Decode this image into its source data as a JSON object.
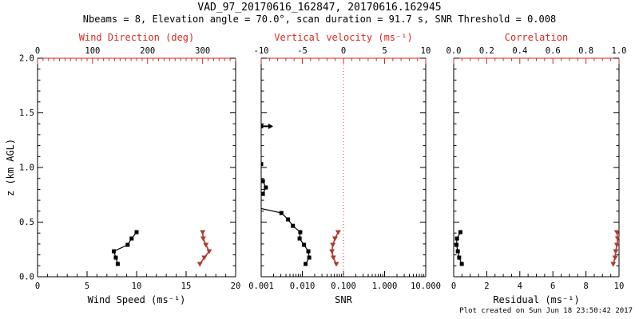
{
  "colors": {
    "black": "#000000",
    "axis_red": "#d92a20",
    "curve_red": "#b03a2e",
    "refline_red": "#e0241b"
  },
  "chart_data": {
    "type": "line",
    "title": "VAD_97_20170616_162847, 20170616.162945",
    "subtitle": "Nbeams = 8, Elevation angle = 70.0°, scan duration = 91.7 s, SNR Threshold = 0.008",
    "footer": "Plot created on Sun Jun 18 23:50:42 2017",
    "ylabel": "z (km AGL)",
    "y_range": [
      0,
      2
    ],
    "y_minor_step": 0.1,
    "y_ticks": [
      {
        "v": 0.0,
        "label": "0.0"
      },
      {
        "v": 0.5,
        "label": "0.5"
      },
      {
        "v": 1.0,
        "label": "1.0"
      },
      {
        "v": 1.5,
        "label": "1.5"
      },
      {
        "v": 2.0,
        "label": "2.0"
      }
    ],
    "panels": [
      {
        "name": "wind",
        "show_y_labels": true,
        "bottom_axis": {
          "title": "Wind Speed (ms⁻¹)",
          "range": [
            0,
            20
          ],
          "scale": "linear",
          "minor_step": 1,
          "color": "#000000",
          "ticks": [
            {
              "v": 0,
              "label": "0"
            },
            {
              "v": 5,
              "label": "5"
            },
            {
              "v": 10,
              "label": "10"
            },
            {
              "v": 15,
              "label": "15"
            },
            {
              "v": 20,
              "label": "20"
            }
          ]
        },
        "top_axis": {
          "title": "Wind Direction (deg)",
          "range": [
            0,
            360
          ],
          "scale": "linear",
          "minor_step": 10,
          "color": "#d92a20",
          "ticks": [
            {
              "v": 0,
              "label": "0"
            },
            {
              "v": 100,
              "label": "100"
            },
            {
              "v": 200,
              "label": "200"
            },
            {
              "v": 300,
              "label": "300"
            }
          ]
        },
        "series": [
          {
            "name": "wind-speed",
            "axis": "bottom",
            "color": "#000000",
            "marker": "square",
            "line_width": 1.2,
            "points": [
              [
                8.1,
                0.117
              ],
              [
                7.9,
                0.175
              ],
              [
                7.7,
                0.233
              ],
              [
                9.1,
                0.292
              ],
              [
                9.5,
                0.35
              ],
              [
                10.0,
                0.408
              ]
            ]
          },
          {
            "name": "wind-direction",
            "axis": "top",
            "color": "#b03a2e",
            "marker": "triangle-down",
            "line_width": 1.6,
            "points": [
              [
                295,
                0.117
              ],
              [
                303,
                0.175
              ],
              [
                312,
                0.233
              ],
              [
                306,
                0.292
              ],
              [
                301,
                0.35
              ],
              [
                300,
                0.408
              ]
            ]
          }
        ]
      },
      {
        "name": "snr",
        "show_y_labels": false,
        "bottom_axis": {
          "title": "SNR",
          "range": [
            0.001,
            10.0
          ],
          "scale": "log",
          "color": "#000000",
          "ticks": [
            {
              "v": 0.001,
              "label": "0.001"
            },
            {
              "v": 0.01,
              "label": "0.010"
            },
            {
              "v": 0.1,
              "label": "0.100"
            },
            {
              "v": 1.0,
              "label": "1.000"
            },
            {
              "v": 10.0,
              "label": "10.000"
            }
          ]
        },
        "top_axis": {
          "title": "Vertical velocity (ms⁻¹)",
          "range": [
            -10,
            10
          ],
          "scale": "linear",
          "minor_step": 1,
          "color": "#d92a20",
          "ticks": [
            {
              "v": -10,
              "label": "-10"
            },
            {
              "v": -5,
              "label": "-5"
            },
            {
              "v": 0,
              "label": "0"
            },
            {
              "v": 5,
              "label": "5"
            },
            {
              "v": 10,
              "label": "10"
            }
          ]
        },
        "refline": {
          "axis": "top",
          "value": 0,
          "color": "#e0241b",
          "style": "dotted"
        },
        "annotations": [
          {
            "type": "arrow-right",
            "value": 0.001,
            "z": 1.377,
            "color": "#000000"
          }
        ],
        "series": [
          {
            "name": "snr",
            "axis": "bottom",
            "color": "#000000",
            "marker": "square",
            "line_width": 1.2,
            "points": [
              [
                0.012,
                0.117
              ],
              [
                0.0147,
                0.175
              ],
              [
                0.014,
                0.233
              ],
              [
                0.011,
                0.292
              ],
              [
                0.0086,
                0.35
              ],
              [
                0.0089,
                0.408
              ],
              [
                0.0059,
                0.466
              ],
              [
                0.0045,
                0.525
              ],
              [
                0.0031,
                0.583
              ],
              [
                0.0006,
                0.642
              ],
              [
                0.0006,
                0.7
              ],
              [
                0.0011,
                0.758
              ],
              [
                0.0013,
                0.817
              ],
              [
                0.0011,
                0.875
              ],
              [
                0.0006,
                0.933
              ],
              [
                0.0006,
                0.992
              ],
              [
                0.001,
                1.031
              ],
              [
                0.0007,
                1.2
              ],
              [
                0.001,
                1.377
              ]
            ]
          },
          {
            "name": "vertical-velocity",
            "axis": "top",
            "color": "#b03a2e",
            "marker": "triangle-down",
            "line_width": 1.6,
            "points": [
              [
                -0.87,
                0.117
              ],
              [
                -1.23,
                0.175
              ],
              [
                -1.4,
                0.233
              ],
              [
                -1.3,
                0.292
              ],
              [
                -1.03,
                0.35
              ],
              [
                -0.64,
                0.408
              ]
            ]
          }
        ]
      },
      {
        "name": "resid",
        "show_y_labels": false,
        "bottom_axis": {
          "title": "Residual (ms⁻¹)",
          "range": [
            0,
            10
          ],
          "scale": "linear",
          "minor_step": 0.5,
          "color": "#000000",
          "ticks": [
            {
              "v": 0,
              "label": "0"
            },
            {
              "v": 2,
              "label": "2"
            },
            {
              "v": 4,
              "label": "4"
            },
            {
              "v": 6,
              "label": "6"
            },
            {
              "v": 8,
              "label": "8"
            },
            {
              "v": 10,
              "label": "10"
            }
          ]
        },
        "top_axis": {
          "title": "Correlation",
          "range": [
            0.0,
            1.0
          ],
          "scale": "linear",
          "minor_step": 0.05,
          "color": "#d92a20",
          "ticks": [
            {
              "v": 0.0,
              "label": "0.0"
            },
            {
              "v": 0.2,
              "label": "0.2"
            },
            {
              "v": 0.4,
              "label": "0.4"
            },
            {
              "v": 0.6,
              "label": "0.6"
            },
            {
              "v": 0.8,
              "label": "0.8"
            },
            {
              "v": 1.0,
              "label": "1.0"
            }
          ]
        },
        "series": [
          {
            "name": "residual",
            "axis": "bottom",
            "color": "#000000",
            "marker": "square",
            "line_width": 1.2,
            "points": [
              [
                0.49,
                0.117
              ],
              [
                0.33,
                0.175
              ],
              [
                0.25,
                0.233
              ],
              [
                0.17,
                0.292
              ],
              [
                0.2,
                0.35
              ],
              [
                0.41,
                0.408
              ]
            ]
          },
          {
            "name": "correlation",
            "axis": "top",
            "color": "#b03a2e",
            "marker": "triangle-down",
            "line_width": 1.6,
            "points": [
              [
                0.965,
                0.117
              ],
              [
                0.976,
                0.175
              ],
              [
                0.98,
                0.233
              ],
              [
                0.987,
                0.292
              ],
              [
                0.992,
                0.35
              ],
              [
                0.987,
                0.408
              ]
            ]
          }
        ]
      }
    ]
  }
}
